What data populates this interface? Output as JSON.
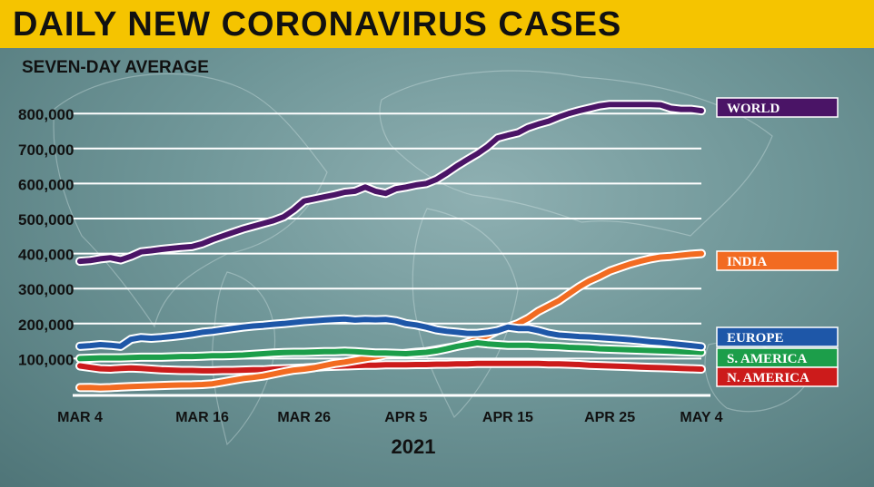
{
  "chart_data": {
    "type": "line",
    "title": "DAILY NEW CORONAVIRUS CASES",
    "subtitle": "SEVEN-DAY AVERAGE",
    "xlabel": "2021",
    "ylabel": "",
    "ylim": [
      0,
      850000
    ],
    "x_ticks": [
      "MAR 4",
      "MAR 16",
      "MAR 26",
      "APR 5",
      "APR 15",
      "APR 25",
      "MAY 4"
    ],
    "y_ticks": [
      "100,000",
      "200,000",
      "300,000",
      "400,000",
      "500,000",
      "600,000",
      "700,000",
      "800,000"
    ],
    "y_tick_values": [
      100000,
      200000,
      300000,
      400000,
      500000,
      600000,
      700000,
      800000
    ],
    "x_days": [
      "Mar 4",
      "Mar 5",
      "Mar 6",
      "Mar 7",
      "Mar 8",
      "Mar 9",
      "Mar 10",
      "Mar 11",
      "Mar 12",
      "Mar 13",
      "Mar 14",
      "Mar 15",
      "Mar 16",
      "Mar 17",
      "Mar 18",
      "Mar 19",
      "Mar 20",
      "Mar 21",
      "Mar 22",
      "Mar 23",
      "Mar 24",
      "Mar 25",
      "Mar 26",
      "Mar 27",
      "Mar 28",
      "Mar 29",
      "Mar 30",
      "Mar 31",
      "Apr 1",
      "Apr 2",
      "Apr 3",
      "Apr 4",
      "Apr 5",
      "Apr 6",
      "Apr 7",
      "Apr 8",
      "Apr 9",
      "Apr 10",
      "Apr 11",
      "Apr 12",
      "Apr 13",
      "Apr 14",
      "Apr 15",
      "Apr 16",
      "Apr 17",
      "Apr 18",
      "Apr 19",
      "Apr 20",
      "Apr 21",
      "Apr 22",
      "Apr 23",
      "Apr 24",
      "Apr 25",
      "Apr 26",
      "Apr 27",
      "Apr 28",
      "Apr 29",
      "Apr 30",
      "May 1",
      "May 2",
      "May 3",
      "May 4"
    ],
    "grid": true,
    "series": [
      {
        "name": "WORLD",
        "color": "#4a1466",
        "values": [
          378000,
          380000,
          385000,
          388000,
          382000,
          392000,
          405000,
          408000,
          412000,
          415000,
          418000,
          420000,
          428000,
          440000,
          450000,
          460000,
          470000,
          478000,
          486000,
          494000,
          505000,
          525000,
          550000,
          556000,
          562000,
          568000,
          575000,
          578000,
          590000,
          578000,
          572000,
          585000,
          590000,
          596000,
          600000,
          612000,
          630000,
          650000,
          668000,
          685000,
          705000,
          730000,
          738000,
          745000,
          760000,
          770000,
          778000,
          790000,
          800000,
          808000,
          815000,
          822000,
          826000,
          826000,
          826000,
          826000,
          826000,
          825000,
          815000,
          812000,
          812000,
          808000
        ]
      },
      {
        "name": "INDIA",
        "color": "#f26b21",
        "values": [
          17000,
          17500,
          16000,
          17000,
          19000,
          20000,
          21000,
          22000,
          23000,
          24000,
          24500,
          25000,
          26000,
          28000,
          33000,
          38000,
          43000,
          46000,
          50000,
          56000,
          62000,
          67000,
          70000,
          74000,
          80000,
          86000,
          90000,
          95000,
          100000,
          105000,
          110000,
          112000,
          115000,
          118000,
          120000,
          125000,
          130000,
          135000,
          145000,
          155000,
          165000,
          180000,
          190000,
          200000,
          215000,
          235000,
          250000,
          265000,
          285000,
          305000,
          322000,
          335000,
          350000,
          360000,
          370000,
          378000,
          385000,
          390000,
          392000,
          395000,
          398000,
          400000
        ]
      },
      {
        "name": "EUROPE",
        "color": "#1e57a8",
        "values": [
          135000,
          137000,
          140000,
          138000,
          135000,
          155000,
          160000,
          158000,
          160000,
          163000,
          166000,
          170000,
          175000,
          178000,
          182000,
          186000,
          190000,
          193000,
          195000,
          198000,
          200000,
          203000,
          206000,
          208000,
          210000,
          212000,
          213000,
          210000,
          212000,
          211000,
          212000,
          208000,
          200000,
          196000,
          190000,
          182000,
          178000,
          175000,
          172000,
          172000,
          175000,
          180000,
          190000,
          186000,
          186000,
          180000,
          172000,
          167000,
          165000,
          163000,
          162000,
          160000,
          158000,
          156000,
          154000,
          151000,
          148000,
          146000,
          143000,
          140000,
          137000,
          134000
        ]
      },
      {
        "name": "S. AMERICA",
        "color": "#1c9e4a",
        "values": [
          100000,
          101000,
          102000,
          102000,
          102000,
          103000,
          104000,
          104000,
          104000,
          105000,
          106000,
          106000,
          107000,
          108000,
          108000,
          109000,
          110000,
          112000,
          114000,
          116000,
          117000,
          118000,
          118000,
          119000,
          120000,
          120000,
          121000,
          120000,
          118000,
          116000,
          116000,
          115000,
          114000,
          116000,
          118000,
          122000,
          128000,
          135000,
          140000,
          145000,
          142000,
          140000,
          138000,
          138000,
          138000,
          136000,
          135000,
          134000,
          132000,
          131000,
          130000,
          128000,
          127000,
          126000,
          125000,
          124000,
          123000,
          122000,
          121000,
          120000,
          119000,
          118000
        ]
      },
      {
        "name": "N. AMERICA",
        "color": "#cc1b1b",
        "values": [
          79000,
          75000,
          71000,
          70000,
          72000,
          73000,
          72000,
          70000,
          68000,
          67000,
          66000,
          66000,
          65000,
          65000,
          66000,
          66000,
          67000,
          68000,
          68000,
          70000,
          71000,
          72000,
          73000,
          75000,
          77000,
          78000,
          79000,
          80000,
          81000,
          81000,
          82000,
          82000,
          82000,
          83000,
          83000,
          84000,
          84000,
          85000,
          85000,
          86000,
          86000,
          86000,
          86000,
          86000,
          86000,
          86000,
          85000,
          85000,
          84000,
          83000,
          81000,
          80000,
          79000,
          78000,
          77000,
          76000,
          75000,
          74000,
          73000,
          72000,
          71000,
          70000
        ]
      }
    ]
  }
}
